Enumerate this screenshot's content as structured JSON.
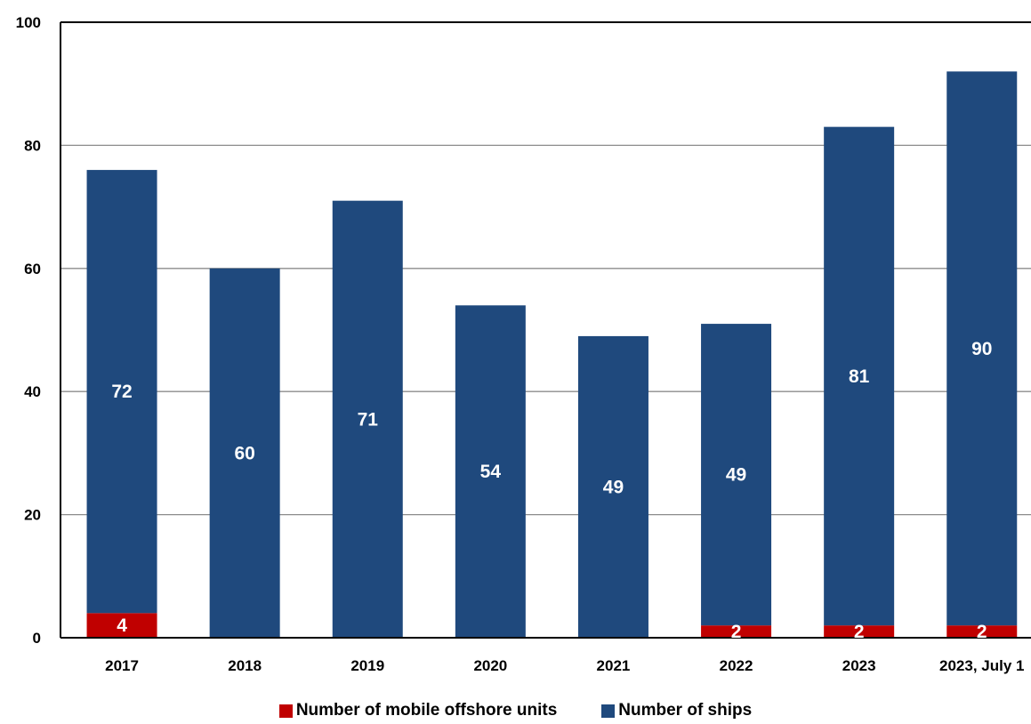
{
  "chart_data": {
    "type": "bar",
    "stacked": true,
    "categories": [
      "2017",
      "2018",
      "2019",
      "2020",
      "2021",
      "2022",
      "2023",
      "2023, July 1"
    ],
    "series": [
      {
        "name": "Number of mobile offshore units",
        "color": "#c00000",
        "values": [
          4,
          0,
          0,
          0,
          0,
          2,
          2,
          2
        ]
      },
      {
        "name": "Number of ships",
        "color": "#1f497d",
        "values": [
          72,
          60,
          71,
          54,
          49,
          49,
          81,
          90
        ]
      }
    ],
    "ylim": [
      0,
      100
    ],
    "yticks": [
      0,
      20,
      40,
      60,
      80,
      100
    ],
    "grid": true,
    "legend_position": "bottom",
    "title": "",
    "xlabel": "",
    "ylabel": ""
  }
}
